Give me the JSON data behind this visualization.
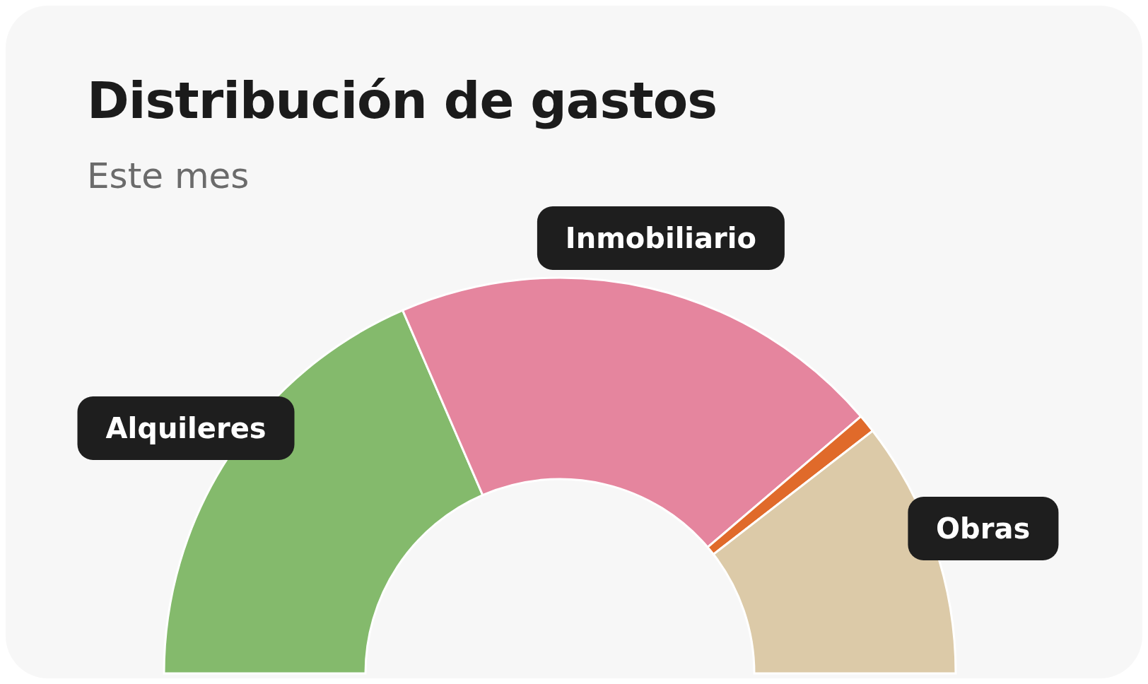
{
  "chart_data": {
    "type": "donut",
    "title": "Distribución de gastos",
    "subtitle": "Este mes",
    "categories": [
      "Alquileres",
      "Inmobiliario",
      null,
      "Obras"
    ],
    "values": [
      37,
      40.5,
      1.5,
      21
    ],
    "colors": [
      "#84ba6c",
      "#e5859e",
      "#e06a2a",
      "#dccaa8"
    ]
  }
}
